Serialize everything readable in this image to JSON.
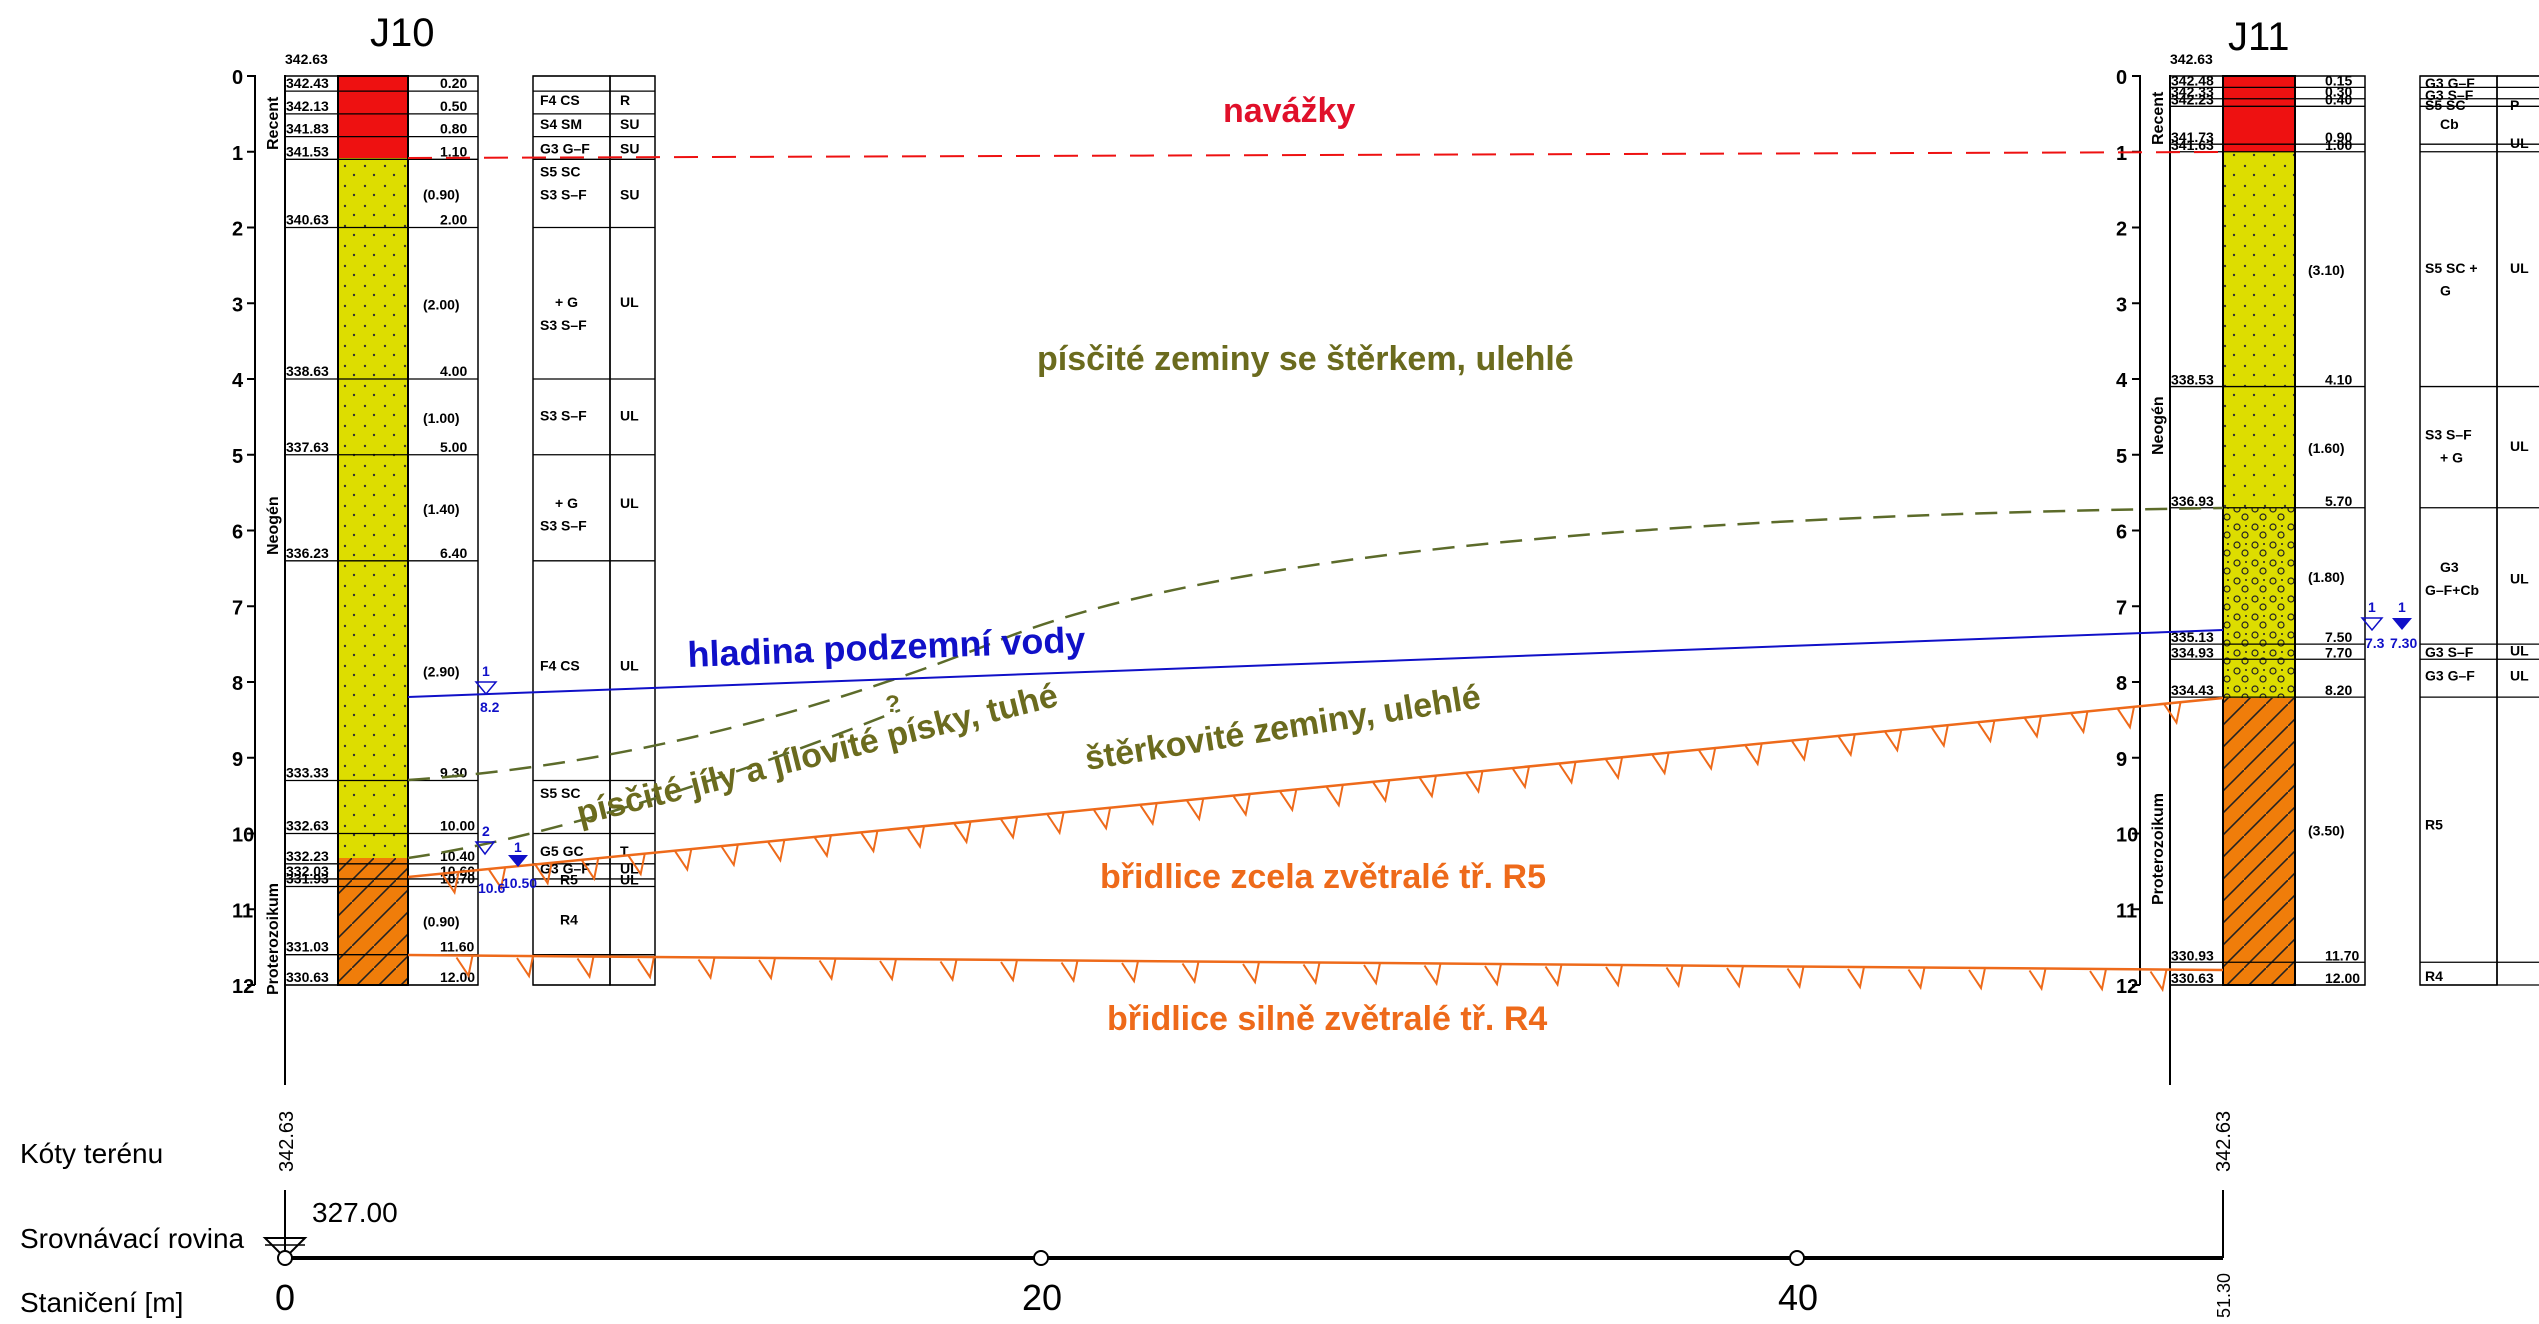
{
  "boreholes": {
    "j10": {
      "name": "J10",
      "top_elev": "342.63",
      "elevs": [
        "342.43",
        "342.13",
        "341.83",
        "341.53",
        "340.63",
        "338.63",
        "337.63",
        "336.23",
        "333.33",
        "332.63",
        "332.23",
        "332.03",
        "331.93",
        "331.03",
        "330.63"
      ],
      "depths": [
        "0.20",
        "0.50",
        "0.80",
        "1.10",
        "(0.90)",
        "2.00",
        "(2.00)",
        "4.00",
        "(1.00)",
        "5.00",
        "(1.40)",
        "6.40",
        "(2.90)",
        "9.30",
        "10.00",
        "10.40",
        "10.60",
        "10.70",
        "(0.90)",
        "11.60",
        "12.00"
      ],
      "soil_class": [
        "F4 CS",
        "S4 SM",
        "G3 G–F",
        "S5 SC",
        "S3 S–F",
        "+ G",
        "S3 S–F",
        "S3 S–F",
        "+ G",
        "S3 S–F",
        "F4 CS",
        "S5 SC",
        "G5 GC",
        "G3 G–F",
        "R5",
        "R4"
      ],
      "consistency": [
        "R",
        "SU",
        "SU",
        "SU",
        "UL",
        "UL",
        "UL",
        "UL",
        "T",
        "UL",
        "UL"
      ],
      "strat": [
        "Recent",
        "Neogén",
        "Proterozoikum"
      ],
      "water": [
        {
          "num": "1",
          "val": "8.2"
        },
        {
          "num": "2",
          "val": "10.6"
        },
        {
          "num": "1",
          "val": "10.50"
        }
      ]
    },
    "j11": {
      "name": "J11",
      "top_elev": "342.63",
      "elevs": [
        "342.48",
        "342.33",
        "342.23",
        "341.73",
        "341.63",
        "338.53",
        "336.93",
        "335.13",
        "334.93",
        "334.43",
        "330.93",
        "330.63"
      ],
      "depths": [
        "0.15",
        "0.30",
        "0.40",
        "0.90",
        "1.00",
        "(3.10)",
        "4.10",
        "(1.60)",
        "5.70",
        "(1.80)",
        "7.50",
        "7.70",
        "8.20",
        "(3.50)",
        "11.70",
        "12.00"
      ],
      "soil_class": [
        "G3 G–F",
        "G3 S–F",
        "S5 SC",
        "Cb",
        "S5 SC +",
        "G",
        "S3 S–F",
        "+ G",
        "G3",
        "G–F+Cb",
        "G3 S–F",
        "G3 G–F",
        "R5",
        "R4"
      ],
      "consistency": [
        "P",
        "UL",
        "UL",
        "UL",
        "UL",
        "UL",
        "UL"
      ],
      "strat": [
        "Recent",
        "Neogén",
        "Proterozoikum"
      ],
      "water": [
        {
          "num": "1",
          "val": "7.3"
        },
        {
          "num": "1",
          "val": "7.30"
        }
      ]
    }
  },
  "depth_ticks": [
    "0",
    "1",
    "2",
    "3",
    "4",
    "5",
    "6",
    "7",
    "8",
    "9",
    "10",
    "11",
    "12"
  ],
  "layer_labels": {
    "navazky": "navážky",
    "piscite": "písčité zeminy se štěrkem, ulehlé",
    "hladina": "hladina podzemní vody",
    "jily": "písčité jíly a jílovité písky, tuhé",
    "question": "?",
    "sterkovite": "štěrkovité zeminy, ulehlé",
    "r5": "břidlice zcela zvětralé tř. R5",
    "r4": "břidlice silně zvětralé tř. R4"
  },
  "bottom": {
    "row1_label": "Kóty terénu",
    "row2_label": "Srovnávací rovina",
    "row3_label": "Staničení [m]",
    "terrain_j10": "342.63",
    "terrain_j11": "342.63",
    "datum": "327.00",
    "stations": [
      "0",
      "20",
      "40"
    ],
    "end_station": "51.30"
  },
  "colors": {
    "fill_red": "#ee1111",
    "fill_yellow": "#dddd00",
    "fill_orange": "#f07d0a",
    "label_red": "#e0102a",
    "label_olive": "#6b6b1e",
    "label_blue": "#1010c8",
    "label_orange": "#ee6a1a",
    "dash_olive": "#5c6b2a"
  }
}
